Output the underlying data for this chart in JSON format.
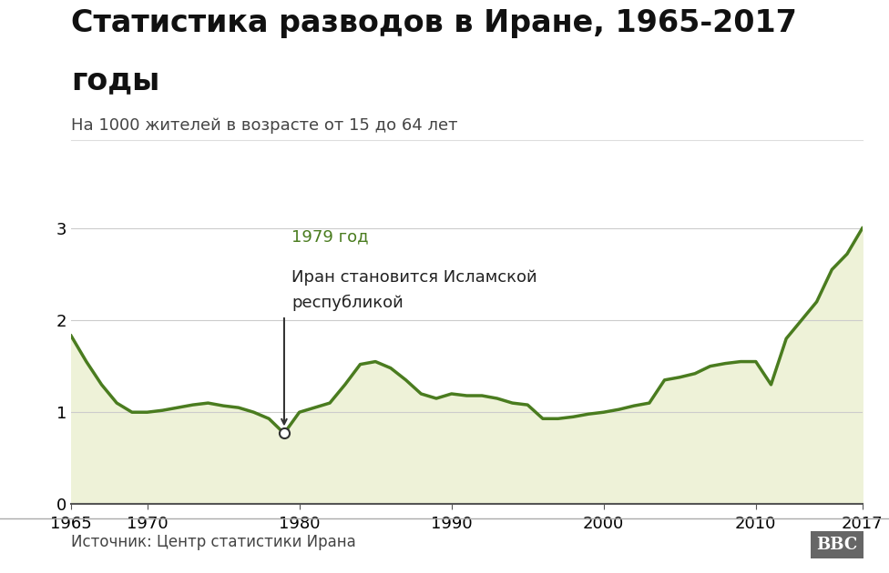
{
  "title_line1": "Статистика разводов в Иране, 1965-2017",
  "title_line2": "годы",
  "subtitle": "На 1000 жителей в возрасте от 15 до 64 лет",
  "source": "Источник: Центр статистики Ирана",
  "years": [
    1965,
    1966,
    1967,
    1968,
    1969,
    1970,
    1971,
    1972,
    1973,
    1974,
    1975,
    1976,
    1977,
    1978,
    1979,
    1980,
    1981,
    1982,
    1983,
    1984,
    1985,
    1986,
    1987,
    1988,
    1989,
    1990,
    1991,
    1992,
    1993,
    1994,
    1995,
    1996,
    1997,
    1998,
    1999,
    2000,
    2001,
    2002,
    2003,
    2004,
    2005,
    2006,
    2007,
    2008,
    2009,
    2010,
    2011,
    2012,
    2013,
    2014,
    2015,
    2016,
    2017
  ],
  "values": [
    1.83,
    1.55,
    1.3,
    1.1,
    1.0,
    1.0,
    1.02,
    1.05,
    1.08,
    1.1,
    1.07,
    1.05,
    1.0,
    0.93,
    0.77,
    1.0,
    1.05,
    1.1,
    1.3,
    1.52,
    1.55,
    1.48,
    1.35,
    1.2,
    1.15,
    1.2,
    1.18,
    1.18,
    1.15,
    1.1,
    1.08,
    0.93,
    0.93,
    0.95,
    0.98,
    1.0,
    1.03,
    1.07,
    1.1,
    1.35,
    1.38,
    1.42,
    1.5,
    1.53,
    1.55,
    1.55,
    1.3,
    1.8,
    2.0,
    2.2,
    2.55,
    2.72,
    3.0
  ],
  "line_color": "#4a7c1f",
  "fill_color": "#eef2d8",
  "annotation_year": 1979,
  "annotation_value": 0.77,
  "annotation_label_line1": "1979 год",
  "annotation_label_line2": "Иран становится Исламской",
  "annotation_label_line3": "республикой",
  "annotation_color": "#4a7c1f",
  "xlim": [
    1965,
    2017
  ],
  "ylim": [
    0,
    3.3
  ],
  "yticks": [
    0,
    1,
    2,
    3
  ],
  "xticks": [
    1965,
    1970,
    1980,
    1990,
    2000,
    2010,
    2017
  ],
  "background_color": "#ffffff",
  "grid_color": "#cccccc",
  "title_fontsize": 24,
  "subtitle_fontsize": 13,
  "tick_fontsize": 13,
  "source_fontsize": 12
}
